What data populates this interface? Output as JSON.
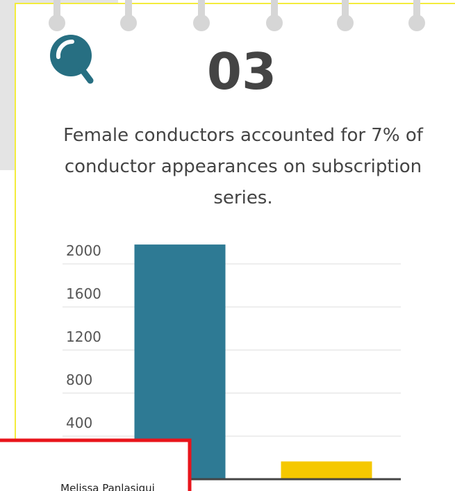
{
  "chart_data": {
    "type": "bar",
    "number": "03",
    "title": "Female conductors accounted for 7% of conductor appearances on subscription series.",
    "categories": [
      null,
      null
    ],
    "values": [
      2180,
      165
    ],
    "colors": [
      "#2e7a94",
      "#f5c800"
    ],
    "ylim": [
      0,
      2200
    ],
    "yticks": [
      0,
      400,
      800,
      1200,
      1600,
      2000
    ],
    "grid": true
  },
  "caption": "Melissa Panlasigui"
}
